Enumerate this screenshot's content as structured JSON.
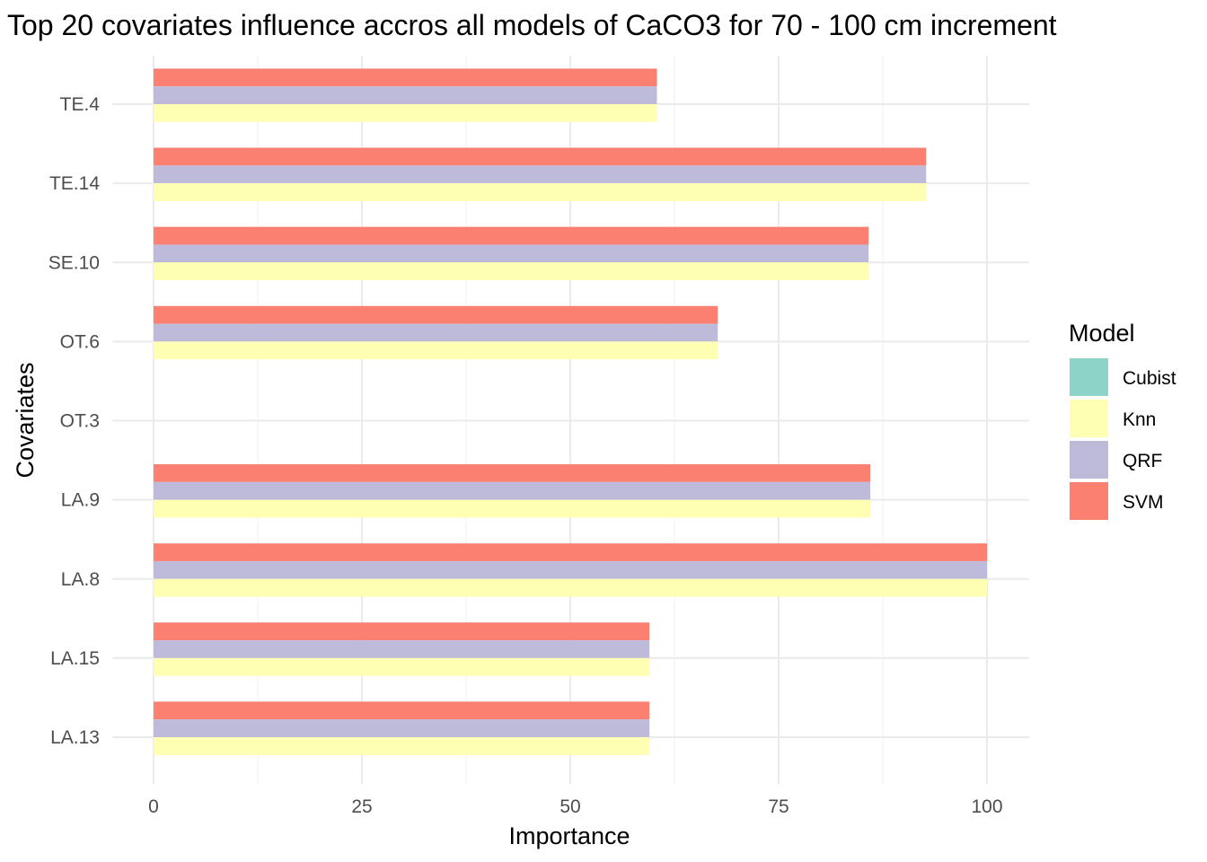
{
  "chart_data": {
    "type": "bar",
    "orientation": "horizontal",
    "title": "Top 20 covariates influence accros all models of CaCO3 for 70 - 100 cm increment",
    "xlabel": "Importance",
    "ylabel": "Covariates",
    "xlim": [
      0,
      105
    ],
    "xticks": [
      0,
      25,
      50,
      75,
      100
    ],
    "categories": [
      "LA.13",
      "LA.15",
      "LA.8",
      "LA.9",
      "OT.3",
      "OT.6",
      "SE.10",
      "TE.14",
      "TE.4"
    ],
    "series": [
      {
        "name": "Cubist",
        "color": "#8DD3C7",
        "values": [
          0,
          0,
          0,
          0,
          0,
          0,
          0,
          0,
          0
        ]
      },
      {
        "name": "Knn",
        "color": "#FFFFB3",
        "values": [
          59.5,
          59.5,
          100,
          86,
          0,
          67.7,
          85.8,
          92.7,
          60.4
        ]
      },
      {
        "name": "QRF",
        "color": "#BEBADA",
        "values": [
          59.5,
          59.5,
          100,
          86,
          0,
          67.7,
          85.8,
          92.7,
          60.4
        ]
      },
      {
        "name": "SVM",
        "color": "#FB8072",
        "values": [
          59.5,
          59.5,
          100,
          86,
          0,
          67.7,
          85.8,
          92.7,
          60.4
        ]
      }
    ],
    "legend": {
      "title": "Model",
      "position": "right"
    },
    "grid": true
  }
}
